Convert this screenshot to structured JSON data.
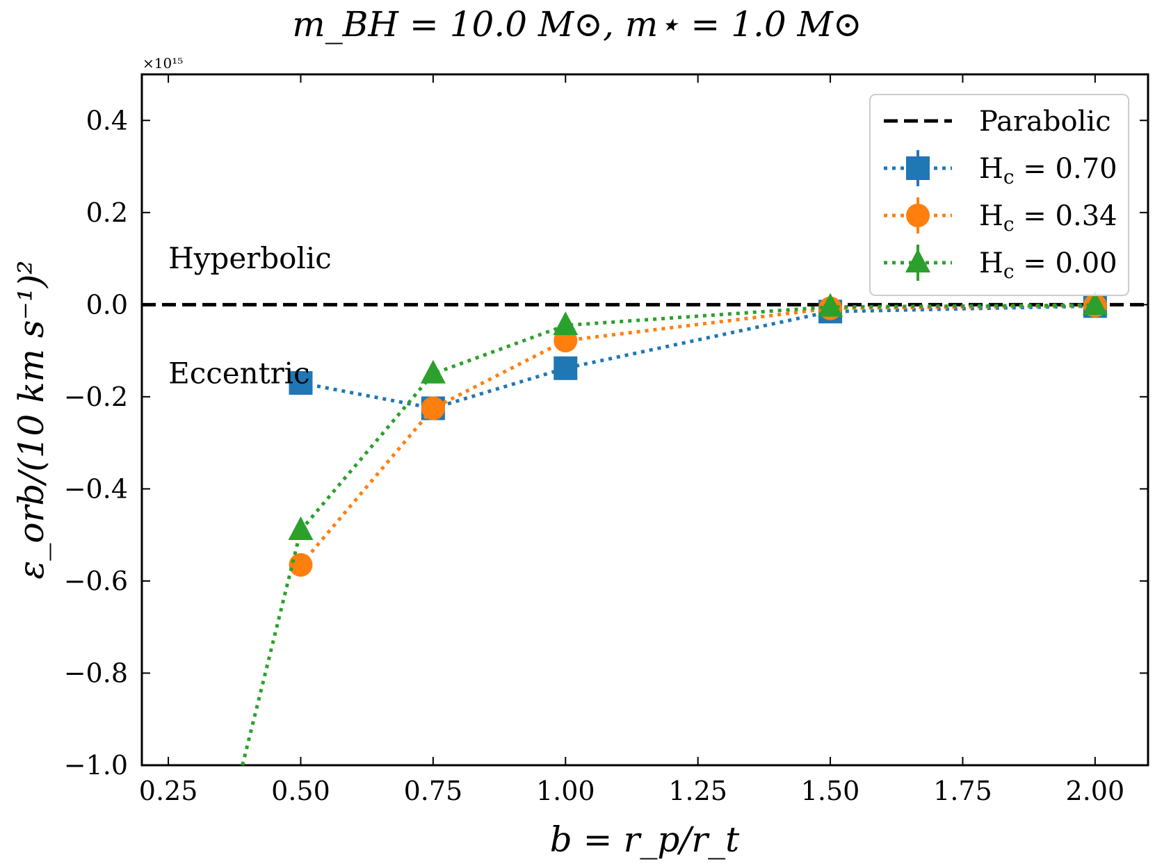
{
  "chart_data": {
    "type": "line",
    "title": "m_BH = 10.0 M⊙, m⋆ = 1.0 M⊙",
    "xlabel": "b = r_p/r_t",
    "ylabel": "ε_orb/(10 km s⁻¹)²",
    "y_multiplier": "×10¹⁵",
    "xlim": [
      0.2,
      2.1
    ],
    "ylim": [
      -1.0,
      0.5
    ],
    "x_ticks": [
      0.25,
      0.5,
      0.75,
      1.0,
      1.25,
      1.5,
      1.75,
      2.0
    ],
    "x_tick_labels": [
      "0.25",
      "0.50",
      "0.75",
      "1.00",
      "1.25",
      "1.50",
      "1.75",
      "2.00"
    ],
    "y_ticks": [
      0.4,
      0.2,
      0.0,
      -0.2,
      -0.4,
      -0.6,
      -0.8,
      -1.0
    ],
    "y_tick_labels": [
      "0.4",
      "0.2",
      "0.0",
      "−0.2",
      "−0.4",
      "−0.6",
      "−0.8",
      "−1.0"
    ],
    "reference_line": {
      "name": "Parabolic",
      "y": 0.0,
      "style": "dashed",
      "color": "#000000"
    },
    "annotations": [
      {
        "text": "Hyperbolic",
        "x": 0.25,
        "y": 0.1
      },
      {
        "text": "Eccentric",
        "x": 0.25,
        "y": -0.15
      }
    ],
    "legend_position": "top-right",
    "series": [
      {
        "name": "H_c = 0.70",
        "label_main": "H",
        "label_sub": "c",
        "label_value": "= 0.70",
        "color": "#1f77b4",
        "marker": "square",
        "x": [
          0.5,
          0.75,
          1.0,
          1.5,
          2.0
        ],
        "y": [
          -0.17,
          -0.225,
          -0.138,
          -0.015,
          -0.003
        ]
      },
      {
        "name": "H_c = 0.34",
        "label_main": "H",
        "label_sub": "c",
        "label_value": "= 0.34",
        "color": "#ff7f0e",
        "marker": "circle",
        "x": [
          0.5,
          0.75,
          1.0,
          1.5,
          2.0
        ],
        "y": [
          -0.565,
          -0.225,
          -0.078,
          -0.008,
          -0.002
        ]
      },
      {
        "name": "H_c = 0.00",
        "label_main": "H",
        "label_sub": "c",
        "label_value": "= 0.00",
        "color": "#2ca02c",
        "marker": "triangle",
        "x": [
          0.5,
          0.75,
          1.0,
          1.5,
          2.0
        ],
        "y": [
          -0.49,
          -0.15,
          -0.045,
          -0.005,
          -0.001
        ],
        "extension_to": {
          "x": 0.39,
          "y": -1.0
        }
      }
    ]
  }
}
